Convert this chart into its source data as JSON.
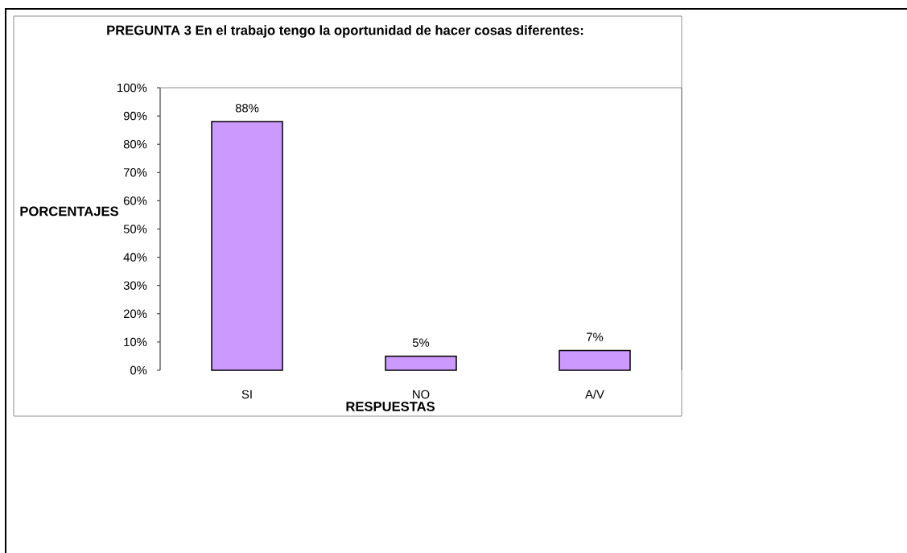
{
  "chart_data": {
    "type": "bar",
    "title": "PREGUNTA 3 En el trabajo tengo la oportunidad de hacer cosas diferentes:",
    "xlabel": "RESPUESTAS",
    "ylabel": "PORCENTAJES",
    "categories": [
      "SI",
      "NO",
      "A/V"
    ],
    "values": [
      88,
      5,
      7
    ],
    "value_labels": [
      "88%",
      "5%",
      "7%"
    ],
    "color": "#cc99ff",
    "ylim": [
      0,
      100
    ],
    "yticks": [
      {
        "value": 0,
        "label": "0%"
      },
      {
        "value": 10,
        "label": "10%"
      },
      {
        "value": 20,
        "label": "20%"
      },
      {
        "value": 30,
        "label": "30%"
      },
      {
        "value": 40,
        "label": "40%"
      },
      {
        "value": 50,
        "label": "50%"
      },
      {
        "value": 60,
        "label": "60%"
      },
      {
        "value": 70,
        "label": "70%"
      },
      {
        "value": 80,
        "label": "80%"
      },
      {
        "value": 90,
        "label": "90%"
      },
      {
        "value": 100,
        "label": "100%"
      }
    ]
  }
}
